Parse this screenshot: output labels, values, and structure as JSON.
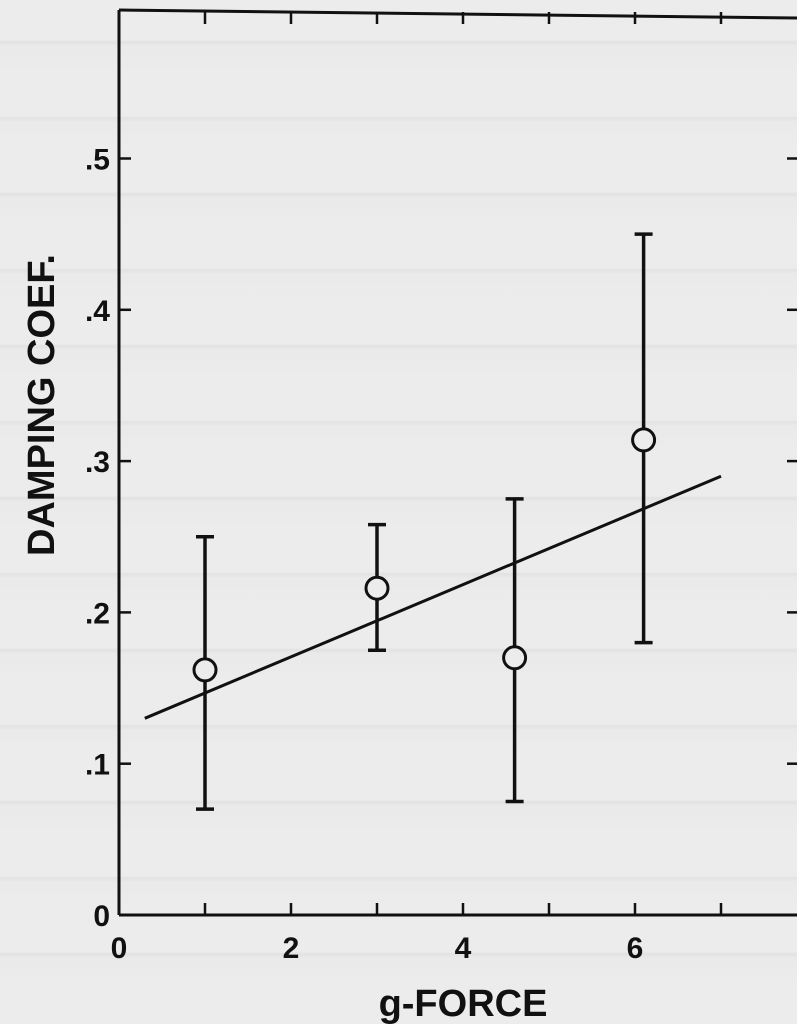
{
  "chart_data": {
    "type": "scatter",
    "xlabel": "g-FORCE",
    "ylabel": "DAMPING COEF.",
    "xlim": [
      0,
      7.7
    ],
    "ylim": [
      0,
      0.6
    ],
    "x_ticks": [
      0,
      2,
      4,
      6
    ],
    "x_tick_labels": [
      "0",
      "2",
      "4",
      "6"
    ],
    "y_ticks": [
      0,
      0.1,
      0.2,
      0.3,
      0.4,
      0.5
    ],
    "y_tick_labels": [
      "0",
      ".1",
      ".2",
      ".3",
      ".4",
      ".5"
    ],
    "grid": false,
    "points": [
      {
        "x": 1.0,
        "y": 0.162,
        "y_low": 0.07,
        "y_high": 0.25
      },
      {
        "x": 3.0,
        "y": 0.216,
        "y_low": 0.175,
        "y_high": 0.258
      },
      {
        "x": 4.6,
        "y": 0.17,
        "y_low": 0.075,
        "y_high": 0.275
      },
      {
        "x": 6.1,
        "y": 0.314,
        "y_low": 0.18,
        "y_high": 0.45
      }
    ],
    "fit_line": {
      "x": [
        0.3,
        7.0
      ],
      "y": [
        0.13,
        0.29
      ]
    }
  }
}
